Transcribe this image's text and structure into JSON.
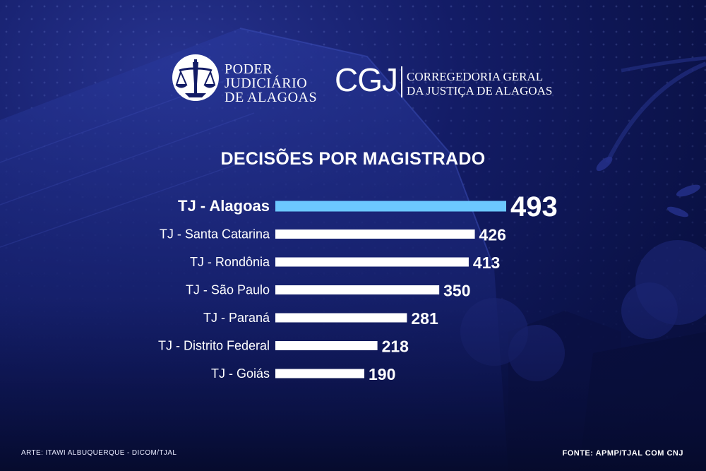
{
  "header": {
    "pj_logo": {
      "icon": "scales-of-justice-icon",
      "lines": [
        "PODER",
        "JUDICIÁRIO",
        "DE ALAGOAS"
      ]
    },
    "cgj_logo": {
      "mark": "CGJ",
      "lines": [
        "CORREGEDORIA GERAL",
        "DA JUSTIÇA DE ALAGOAS"
      ]
    }
  },
  "colors": {
    "background": "#131c66",
    "highlight_bar": "#6cc8ff",
    "bar": "#ffffff",
    "text": "#ffffff"
  },
  "chart_data": {
    "type": "bar",
    "orientation": "horizontal",
    "title": "DECISÕES POR MAGISTRADO",
    "xlabel": "",
    "ylabel": "",
    "xlim": [
      0,
      493
    ],
    "grid": false,
    "highlight_category": "TJ - Alagoas",
    "categories": [
      "TJ - Alagoas",
      "TJ - Santa Catarina",
      "TJ - Rondônia",
      "TJ - São Paulo",
      "TJ - Paraná",
      "TJ - Distrito Federal",
      "TJ - Goiás"
    ],
    "values": [
      493,
      426,
      413,
      350,
      281,
      218,
      190
    ]
  },
  "footer": {
    "credit": "ARTE: ITAWI ALBUQUERQUE - DICOM/TJAL",
    "source": "FONTE: APMP/TJAL COM CNJ"
  }
}
